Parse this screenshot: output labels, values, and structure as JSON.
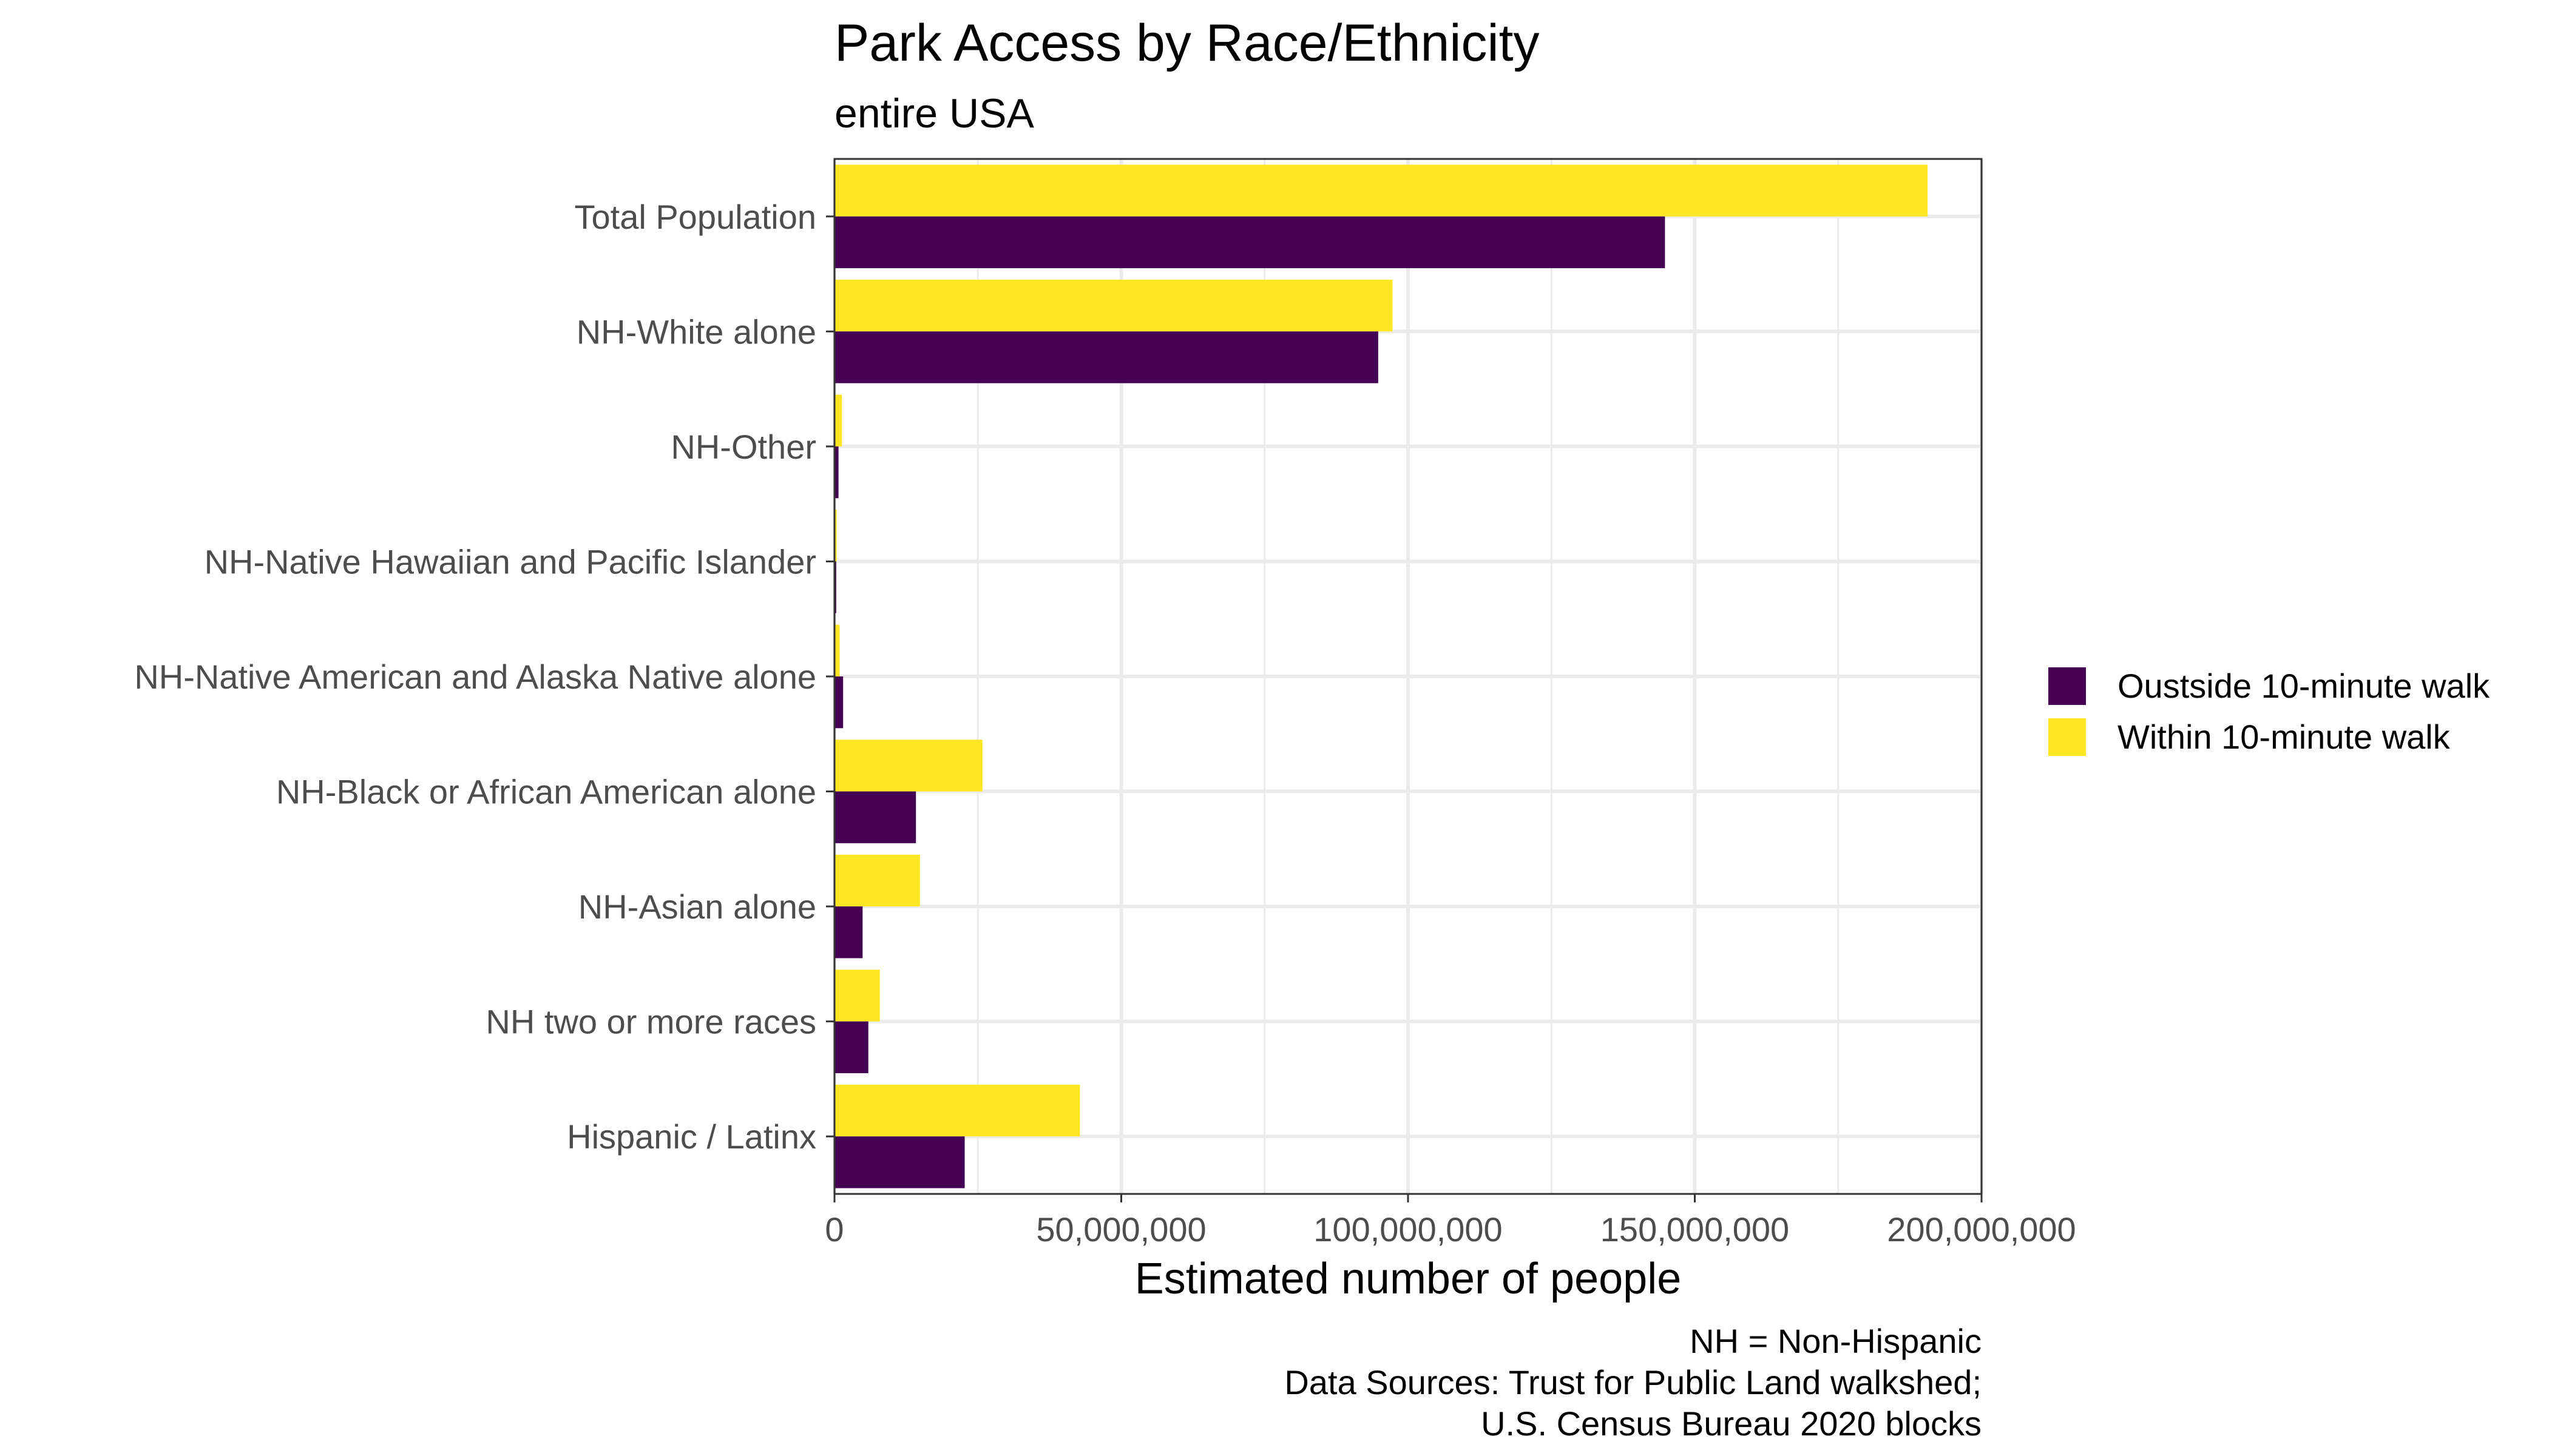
{
  "chart_data": {
    "type": "bar",
    "orientation": "horizontal",
    "title": "Park Access by Race/Ethnicity",
    "subtitle": "entire USA",
    "xlabel": "Estimated number of people",
    "ylabel": "",
    "xlim": [
      0,
      200000000
    ],
    "x_ticks": [
      0,
      50000000,
      100000000,
      150000000,
      200000000
    ],
    "x_tick_labels": [
      "0",
      "50,000,000",
      "100,000,000",
      "150,000,000",
      "200,000,000"
    ],
    "grid": true,
    "legend_position": "right",
    "categories": [
      "Total Population",
      "NH-White alone",
      "NH-Other",
      "NH-Native Hawaiian and Pacific Islander",
      "NH-Native American and Alaska Native alone",
      "NH-Black or African American alone",
      "NH-Asian alone",
      "NH two or more races",
      "Hispanic / Latinx"
    ],
    "series": [
      {
        "name": "Oustside 10-minute walk",
        "color": "#440154",
        "values": [
          144800000,
          94800000,
          700000,
          300000,
          1500000,
          14200000,
          4900000,
          5900000,
          22700000
        ]
      },
      {
        "name": "Within 10-minute walk",
        "color": "#FDE725",
        "values": [
          190600000,
          97300000,
          1300000,
          400000,
          900000,
          25800000,
          14900000,
          7900000,
          42800000
        ]
      }
    ],
    "caption": [
      "NH = Non-Hispanic",
      "Data Sources: Trust for Public Land walkshed;",
      "U.S. Census Bureau 2020 blocks"
    ]
  }
}
